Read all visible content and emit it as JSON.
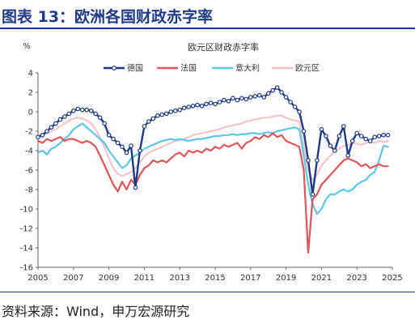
{
  "header": {
    "title": "图表 13：欧洲各国财政赤字率"
  },
  "source": "资料来源：Wind，申万宏源研究",
  "colors": {
    "title": "#1f3a8a",
    "germany": "#1f3a8a",
    "france": "#e0555a",
    "italy": "#5cc8e6",
    "eurozone": "#f4c6cc"
  },
  "chart_data": {
    "type": "line",
    "title": "欧元区财政赤字率",
    "ylabel": "%",
    "xlabel": "",
    "ylim": [
      -16,
      4
    ],
    "xlim": [
      2005,
      2025
    ],
    "yticks": [
      "4",
      "2",
      "0",
      "-2",
      "-4",
      "-6",
      "-8",
      "-10",
      "-12",
      "-14",
      "-16"
    ],
    "xticks": [
      "2005",
      "2007",
      "2009",
      "2011",
      "2013",
      "2015",
      "2017",
      "2019",
      "2021",
      "2023",
      "2025"
    ],
    "legend_position": "top",
    "series": [
      {
        "name": "德国",
        "key": "germany",
        "markers": true,
        "x": [
          2005.0,
          2005.25,
          2005.5,
          2005.75,
          2006.0,
          2006.25,
          2006.5,
          2006.75,
          2007.0,
          2007.25,
          2007.5,
          2007.75,
          2008.0,
          2008.25,
          2008.5,
          2008.75,
          2009.0,
          2009.25,
          2009.5,
          2009.75,
          2010.0,
          2010.25,
          2010.5,
          2010.75,
          2011.0,
          2011.25,
          2011.5,
          2011.75,
          2012.0,
          2012.25,
          2012.5,
          2012.75,
          2013.0,
          2013.25,
          2013.5,
          2013.75,
          2014.0,
          2014.25,
          2014.5,
          2014.75,
          2015.0,
          2015.25,
          2015.5,
          2015.75,
          2016.0,
          2016.25,
          2016.5,
          2016.75,
          2017.0,
          2017.25,
          2017.5,
          2017.75,
          2018.0,
          2018.25,
          2018.5,
          2018.75,
          2019.0,
          2019.25,
          2019.5,
          2019.75,
          2020.0,
          2020.25,
          2020.5,
          2020.75,
          2021.0,
          2021.25,
          2021.5,
          2021.75,
          2022.0,
          2022.25,
          2022.5,
          2022.75,
          2023.0,
          2023.25,
          2023.5,
          2023.75,
          2024.0,
          2024.25,
          2024.5,
          2024.75
        ],
        "y": [
          -2.6,
          -2.4,
          -2.0,
          -1.6,
          -1.2,
          -0.8,
          -0.5,
          -0.2,
          0.1,
          0.3,
          0.2,
          0.2,
          0.1,
          -0.2,
          -0.6,
          -1.2,
          -2.4,
          -2.8,
          -3.2,
          -3.6,
          -4.2,
          -3.5,
          -7.8,
          -4.0,
          -1.5,
          -1.0,
          -0.7,
          -0.4,
          -0.3,
          -0.2,
          0.0,
          0.1,
          0.2,
          0.4,
          0.5,
          0.6,
          0.7,
          0.6,
          0.8,
          0.9,
          0.8,
          1.0,
          1.2,
          1.1,
          1.4,
          1.2,
          1.4,
          1.3,
          1.5,
          1.6,
          1.7,
          1.5,
          1.9,
          2.2,
          2.5,
          2.0,
          1.5,
          1.0,
          0.5,
          0.0,
          -2.0,
          -5.0,
          -8.5,
          -5.0,
          -1.8,
          -2.5,
          -3.5,
          -4.0,
          -2.5,
          -1.5,
          -4.5,
          -3.0,
          -2.2,
          -2.5,
          -2.8,
          -3.0,
          -2.6,
          -2.5,
          -2.4,
          -2.4
        ]
      },
      {
        "name": "法国",
        "key": "france",
        "markers": false,
        "x": [
          2005.0,
          2005.25,
          2005.5,
          2005.75,
          2006.0,
          2006.25,
          2006.5,
          2006.75,
          2007.0,
          2007.25,
          2007.5,
          2007.75,
          2008.0,
          2008.25,
          2008.5,
          2008.75,
          2009.0,
          2009.25,
          2009.5,
          2009.75,
          2010.0,
          2010.25,
          2010.5,
          2010.75,
          2011.0,
          2011.25,
          2011.5,
          2011.75,
          2012.0,
          2012.25,
          2012.5,
          2012.75,
          2013.0,
          2013.25,
          2013.5,
          2013.75,
          2014.0,
          2014.25,
          2014.5,
          2014.75,
          2015.0,
          2015.25,
          2015.5,
          2015.75,
          2016.0,
          2016.25,
          2016.5,
          2016.75,
          2017.0,
          2017.25,
          2017.5,
          2017.75,
          2018.0,
          2018.25,
          2018.5,
          2018.75,
          2019.0,
          2019.25,
          2019.5,
          2019.75,
          2020.0,
          2020.25,
          2020.5,
          2020.75,
          2021.0,
          2021.25,
          2021.5,
          2021.75,
          2022.0,
          2022.25,
          2022.5,
          2022.75,
          2023.0,
          2023.25,
          2023.5,
          2023.75,
          2024.0,
          2024.25,
          2024.5,
          2024.75
        ],
        "y": [
          -3.0,
          -3.2,
          -2.8,
          -3.0,
          -2.8,
          -2.6,
          -3.0,
          -2.8,
          -2.8,
          -3.0,
          -3.2,
          -3.0,
          -3.2,
          -3.6,
          -4.5,
          -5.5,
          -6.5,
          -7.5,
          -8.2,
          -7.2,
          -8.0,
          -7.0,
          -7.5,
          -6.5,
          -5.8,
          -5.5,
          -5.0,
          -5.2,
          -5.0,
          -5.2,
          -4.8,
          -4.4,
          -4.2,
          -4.6,
          -4.0,
          -4.2,
          -4.0,
          -4.2,
          -3.8,
          -4.0,
          -3.6,
          -3.8,
          -3.4,
          -3.6,
          -3.4,
          -3.2,
          -3.8,
          -3.2,
          -3.0,
          -2.6,
          -2.8,
          -2.4,
          -2.6,
          -2.2,
          -2.6,
          -2.4,
          -3.0,
          -3.2,
          -3.4,
          -3.6,
          -6.0,
          -14.5,
          -9.0,
          -8.5,
          -7.5,
          -7.0,
          -6.5,
          -6.0,
          -5.5,
          -5.0,
          -4.8,
          -5.0,
          -5.2,
          -5.6,
          -5.4,
          -5.8,
          -5.6,
          -5.4,
          -5.6,
          -5.6
        ]
      },
      {
        "name": "意大利",
        "key": "italy",
        "markers": false,
        "x": [
          2005.0,
          2005.25,
          2005.5,
          2005.75,
          2006.0,
          2006.25,
          2006.5,
          2006.75,
          2007.0,
          2007.25,
          2007.5,
          2007.75,
          2008.0,
          2008.25,
          2008.5,
          2008.75,
          2009.0,
          2009.25,
          2009.5,
          2009.75,
          2010.0,
          2010.25,
          2010.5,
          2010.75,
          2011.0,
          2011.25,
          2011.5,
          2011.75,
          2012.0,
          2012.25,
          2012.5,
          2012.75,
          2013.0,
          2013.25,
          2013.5,
          2013.75,
          2014.0,
          2014.25,
          2014.5,
          2014.75,
          2015.0,
          2015.25,
          2015.5,
          2015.75,
          2016.0,
          2016.25,
          2016.5,
          2016.75,
          2017.0,
          2017.25,
          2017.5,
          2017.75,
          2018.0,
          2018.25,
          2018.5,
          2018.75,
          2019.0,
          2019.25,
          2019.5,
          2019.75,
          2020.0,
          2020.25,
          2020.5,
          2020.75,
          2021.0,
          2021.25,
          2021.5,
          2021.75,
          2022.0,
          2022.25,
          2022.5,
          2022.75,
          2023.0,
          2023.25,
          2023.5,
          2023.75,
          2024.0,
          2024.25,
          2024.5,
          2024.75
        ],
        "y": [
          -4.2,
          -4.0,
          -4.4,
          -3.8,
          -3.6,
          -3.2,
          -2.8,
          -2.4,
          -1.8,
          -1.5,
          -1.2,
          -1.6,
          -2.0,
          -2.4,
          -2.8,
          -3.2,
          -4.0,
          -4.6,
          -5.2,
          -5.8,
          -5.5,
          -4.8,
          -4.5,
          -4.2,
          -3.8,
          -3.6,
          -3.4,
          -3.2,
          -3.0,
          -2.9,
          -2.8,
          -2.9,
          -2.8,
          -2.9,
          -3.0,
          -2.9,
          -2.8,
          -2.8,
          -2.7,
          -2.6,
          -2.5,
          -2.5,
          -2.4,
          -2.4,
          -2.3,
          -2.4,
          -2.3,
          -2.3,
          -2.2,
          -2.2,
          -2.3,
          -2.2,
          -2.1,
          -2.2,
          -2.0,
          -1.9,
          -1.8,
          -1.7,
          -1.6,
          -1.8,
          -4.5,
          -7.5,
          -9.5,
          -10.5,
          -10.0,
          -9.0,
          -8.5,
          -8.5,
          -8.2,
          -8.0,
          -8.2,
          -8.0,
          -7.5,
          -7.2,
          -7.0,
          -6.5,
          -6.2,
          -5.0,
          -3.5,
          -3.6
        ]
      },
      {
        "name": "欧元区",
        "key": "eurozone",
        "markers": false,
        "x": [
          2005.0,
          2005.25,
          2005.5,
          2005.75,
          2006.0,
          2006.25,
          2006.5,
          2006.75,
          2007.0,
          2007.25,
          2007.5,
          2007.75,
          2008.0,
          2008.25,
          2008.5,
          2008.75,
          2009.0,
          2009.25,
          2009.5,
          2009.75,
          2010.0,
          2010.25,
          2010.5,
          2010.75,
          2011.0,
          2011.25,
          2011.5,
          2011.75,
          2012.0,
          2012.25,
          2012.5,
          2012.75,
          2013.0,
          2013.25,
          2013.5,
          2013.75,
          2014.0,
          2014.25,
          2014.5,
          2014.75,
          2015.0,
          2015.25,
          2015.5,
          2015.75,
          2016.0,
          2016.25,
          2016.5,
          2016.75,
          2017.0,
          2017.25,
          2017.5,
          2017.75,
          2018.0,
          2018.25,
          2018.5,
          2018.75,
          2019.0,
          2019.25,
          2019.5,
          2019.75,
          2020.0,
          2020.25,
          2020.5,
          2020.75,
          2021.0,
          2021.25,
          2021.5,
          2021.75,
          2022.0,
          2022.25,
          2022.5,
          2022.75,
          2023.0,
          2023.25,
          2023.5,
          2023.75,
          2024.0,
          2024.25,
          2024.5,
          2024.75
        ],
        "y": [
          -2.4,
          -2.3,
          -2.2,
          -2.0,
          -1.8,
          -1.5,
          -1.2,
          -0.9,
          -0.7,
          -0.6,
          -0.7,
          -0.9,
          -1.2,
          -1.8,
          -2.6,
          -3.6,
          -4.8,
          -5.8,
          -6.4,
          -6.6,
          -6.4,
          -6.2,
          -5.8,
          -5.2,
          -4.6,
          -4.2,
          -4.0,
          -3.8,
          -3.6,
          -3.4,
          -3.2,
          -3.0,
          -2.9,
          -2.8,
          -2.6,
          -2.4,
          -2.3,
          -2.2,
          -2.1,
          -2.0,
          -1.9,
          -1.8,
          -1.6,
          -1.5,
          -1.4,
          -1.3,
          -1.2,
          -1.0,
          -0.9,
          -0.8,
          -0.7,
          -0.6,
          -0.6,
          -0.5,
          -0.4,
          -0.4,
          -0.6,
          -0.8,
          -0.9,
          -1.0,
          -3.5,
          -6.0,
          -7.0,
          -6.5,
          -5.5,
          -5.0,
          -4.5,
          -4.0,
          -3.8,
          -3.5,
          -3.4,
          -3.2,
          -3.3,
          -3.4,
          -3.2,
          -3.1,
          -3.2,
          -3.0,
          -3.1,
          -3.0
        ]
      }
    ]
  }
}
